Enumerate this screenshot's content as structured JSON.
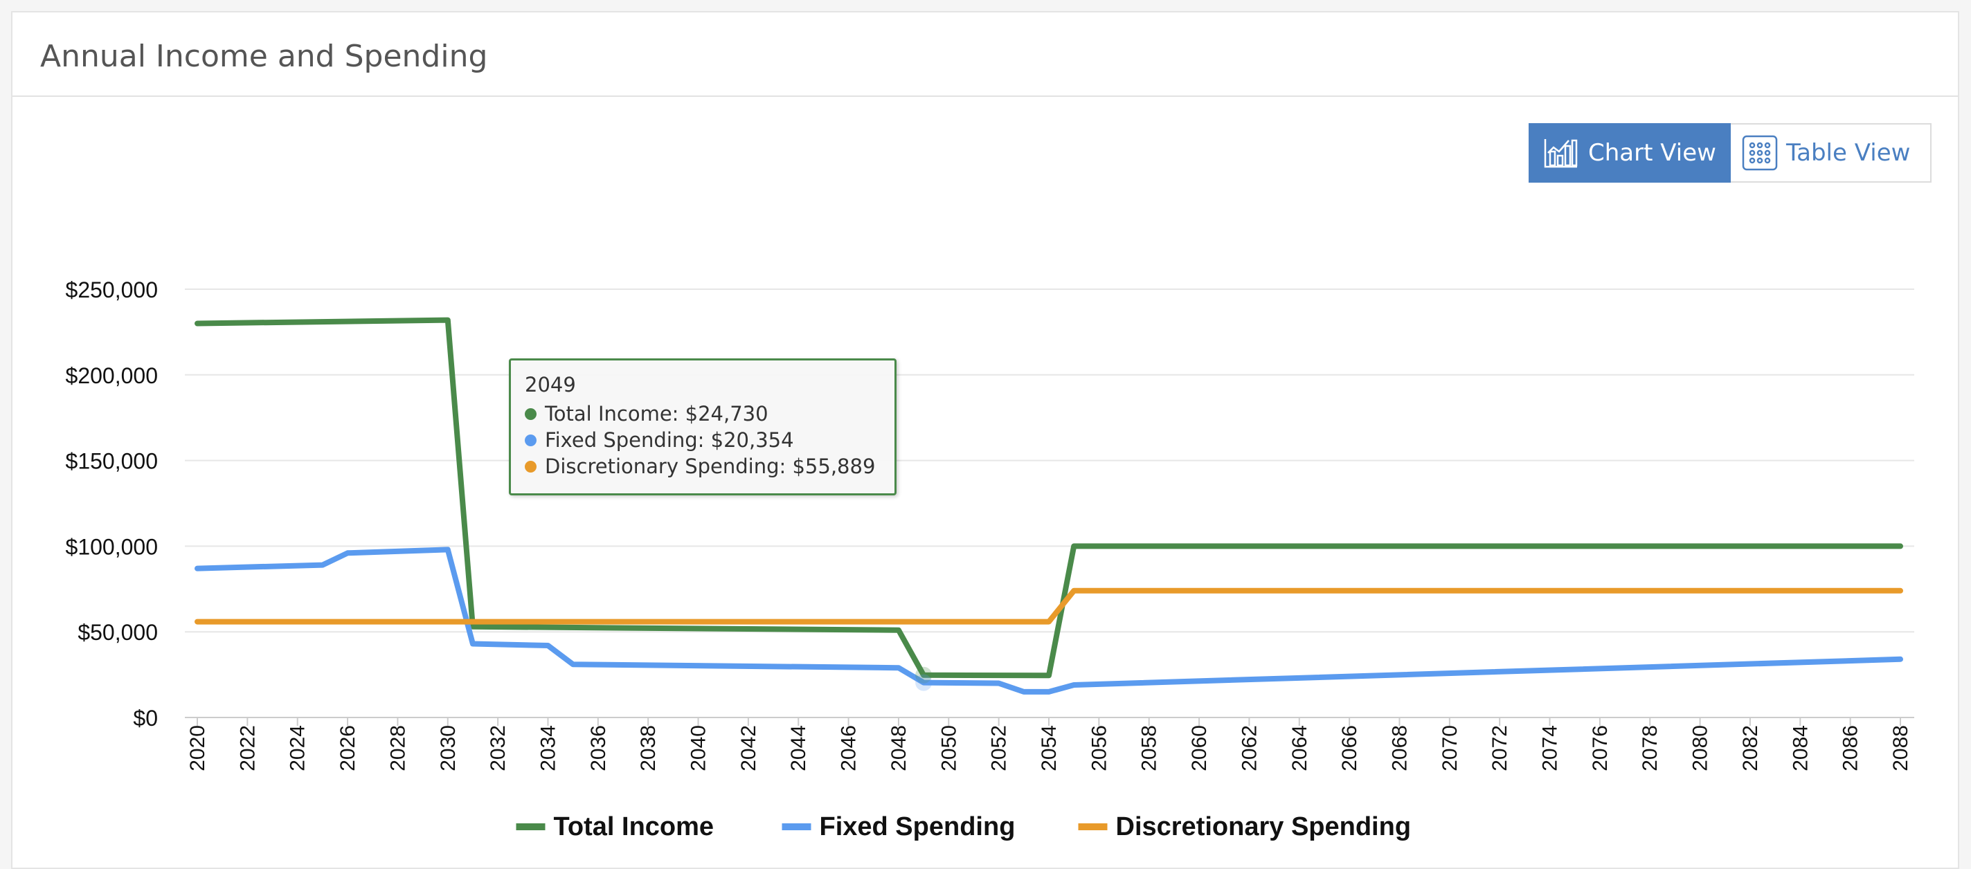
{
  "panel": {
    "title": "Annual Income and Spending"
  },
  "view_toggle": {
    "chart_label": "Chart View",
    "table_label": "Table View",
    "active": "chart"
  },
  "colors": {
    "income": "#4a8a4a",
    "fixed": "#5b9bef",
    "discretionary": "#e89a2a",
    "accent": "#4a7fc1"
  },
  "tooltip": {
    "year": "2049",
    "rows": [
      {
        "label": "Total Income: $24,730"
      },
      {
        "label": "Fixed Spending: $20,354"
      },
      {
        "label": "Discretionary Spending: $55,889"
      }
    ]
  },
  "chart_data": {
    "type": "line",
    "title": "Annual Income and Spending",
    "xlabel": "",
    "ylabel": "",
    "xlim": [
      2020,
      2088
    ],
    "ylim": [
      0,
      250000
    ],
    "yticks": [
      0,
      50000,
      100000,
      150000,
      200000,
      250000
    ],
    "ytick_labels": [
      "$0",
      "$50,000",
      "$100,000",
      "$150,000",
      "$200,000",
      "$250,000"
    ],
    "xticks": [
      2020,
      2022,
      2024,
      2026,
      2028,
      2030,
      2032,
      2034,
      2036,
      2038,
      2040,
      2042,
      2044,
      2046,
      2048,
      2050,
      2052,
      2054,
      2056,
      2058,
      2060,
      2062,
      2064,
      2066,
      2068,
      2070,
      2072,
      2074,
      2076,
      2078,
      2080,
      2082,
      2084,
      2086,
      2088
    ],
    "legend_position": "bottom",
    "highlight_x": 2049,
    "series": [
      {
        "name": "Total Income",
        "color": "#4a8a4a",
        "points": [
          [
            2020,
            230000
          ],
          [
            2030,
            232000
          ],
          [
            2031,
            53000
          ],
          [
            2048,
            51000
          ],
          [
            2049,
            24730
          ],
          [
            2054,
            24500
          ],
          [
            2055,
            100000
          ],
          [
            2088,
            100000
          ]
        ]
      },
      {
        "name": "Fixed Spending",
        "color": "#5b9bef",
        "points": [
          [
            2020,
            87000
          ],
          [
            2025,
            89000
          ],
          [
            2026,
            96000
          ],
          [
            2030,
            98000
          ],
          [
            2031,
            43000
          ],
          [
            2034,
            42000
          ],
          [
            2035,
            31000
          ],
          [
            2048,
            29000
          ],
          [
            2049,
            20354
          ],
          [
            2052,
            20000
          ],
          [
            2053,
            15000
          ],
          [
            2054,
            15000
          ],
          [
            2055,
            19000
          ],
          [
            2088,
            34000
          ]
        ]
      },
      {
        "name": "Discretionary Spending",
        "color": "#e89a2a",
        "points": [
          [
            2020,
            55889
          ],
          [
            2054,
            55889
          ],
          [
            2055,
            74000
          ],
          [
            2088,
            74000
          ]
        ]
      }
    ]
  }
}
